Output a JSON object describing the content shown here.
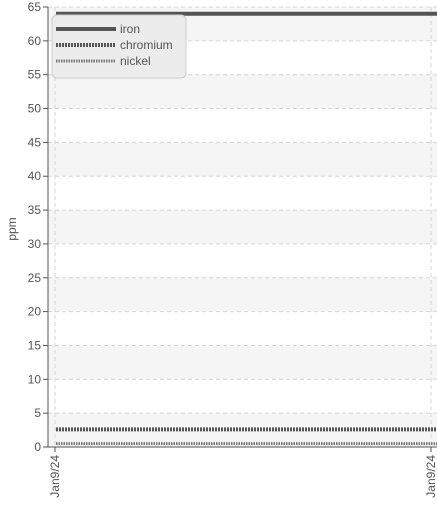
{
  "chart_data": {
    "type": "line",
    "ylabel": "ppm",
    "xlabel": "",
    "ylim": [
      0,
      65
    ],
    "yticks": [
      0,
      5,
      10,
      15,
      20,
      25,
      30,
      35,
      40,
      45,
      50,
      55,
      60,
      65
    ],
    "x_tick_labels": [
      "Jan9/24",
      "Jan9/24"
    ],
    "grid": true,
    "legend_placement": "top-left",
    "series": [
      {
        "name": "iron",
        "values": [
          64,
          64
        ],
        "color": "#555555",
        "style": "solid"
      },
      {
        "name": "chromium",
        "values": [
          2.6,
          2.6
        ],
        "color": "#555555",
        "style": "dense-dotted"
      },
      {
        "name": "nickel",
        "values": [
          0.5,
          0.5
        ],
        "color": "#777777",
        "style": "dotted"
      }
    ]
  }
}
